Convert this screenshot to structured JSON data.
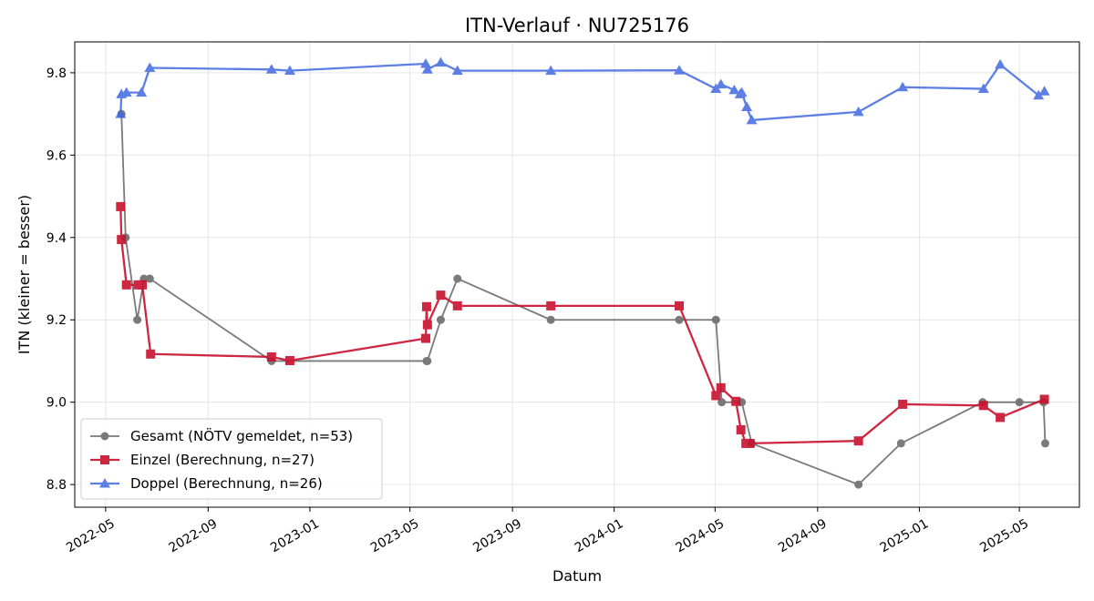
{
  "chart_data": {
    "type": "line",
    "title": "ITN-Verlauf · NU725176",
    "xlabel": "Datum",
    "ylabel": "ITN  (kleiner = besser)",
    "ylim": [
      8.745,
      9.875
    ],
    "xlim": [
      "2022-03-25",
      "2025-07-12"
    ],
    "yticks": [
      8.8,
      9.0,
      9.2,
      9.4,
      9.6,
      9.8
    ],
    "ytick_labels": [
      "8.8",
      "9.0",
      "9.2",
      "9.4",
      "9.6",
      "9.8"
    ],
    "xticks": [
      "2022-05-01",
      "2022-09-01",
      "2023-01-01",
      "2023-05-01",
      "2023-09-01",
      "2024-01-01",
      "2024-05-01",
      "2024-09-01",
      "2025-01-01",
      "2025-05-01"
    ],
    "xtick_labels": [
      "2022-05",
      "2022-09",
      "2023-01",
      "2023-05",
      "2023-09",
      "2024-01",
      "2024-05",
      "2024-09",
      "2025-01",
      "2025-05"
    ],
    "grid": true,
    "legend_position": "lower-left",
    "series": [
      {
        "name": "Gesamt (NÖTV gemeldet, n=53)",
        "color": "#555555",
        "marker": "circle",
        "x": [
          "2022-05-20",
          "2022-05-25",
          "2022-06-08",
          "2022-06-16",
          "2022-06-23",
          "2022-11-16",
          "2023-05-21",
          "2023-05-22",
          "2023-06-07",
          "2023-06-27",
          "2023-10-17",
          "2024-03-19",
          "2024-05-02",
          "2024-05-09",
          "2024-06-02",
          "2024-06-14",
          "2024-10-20",
          "2024-12-10",
          "2025-03-18",
          "2025-05-01",
          "2025-05-30",
          "2025-06-01"
        ],
        "y": [
          9.7,
          9.4,
          9.2,
          9.3,
          9.3,
          9.1,
          9.1,
          9.1,
          9.2,
          9.3,
          9.2,
          9.2,
          9.2,
          9.0,
          9.0,
          8.9,
          8.8,
          8.9,
          9.0,
          9.0,
          9.0,
          8.9
        ]
      },
      {
        "name": "Einzel (Berechnung, n=27)",
        "color": "#c8102e",
        "marker": "square",
        "x": [
          "2022-05-19",
          "2022-05-20",
          "2022-05-26",
          "2022-06-09",
          "2022-06-14",
          "2022-06-24",
          "2022-11-16",
          "2022-12-08",
          "2023-05-20",
          "2023-05-21",
          "2023-05-22",
          "2023-06-07",
          "2023-06-27",
          "2023-10-17",
          "2024-03-19",
          "2024-05-02",
          "2024-05-08",
          "2024-05-26",
          "2024-06-01",
          "2024-06-07",
          "2024-06-12",
          "2024-10-20",
          "2024-12-12",
          "2025-03-19",
          "2025-04-08",
          "2025-05-31"
        ],
        "y": [
          9.475,
          9.395,
          9.285,
          9.285,
          9.285,
          9.117,
          9.11,
          9.101,
          9.155,
          9.232,
          9.188,
          9.26,
          9.234,
          9.234,
          9.234,
          9.016,
          9.035,
          9.002,
          8.933,
          8.9,
          8.9,
          8.906,
          8.995,
          8.992,
          8.963,
          9.007
        ]
      },
      {
        "name": "Doppel (Berechnung, n=26)",
        "color": "#4169e1",
        "marker": "triangle",
        "x": [
          "2022-05-19",
          "2022-05-20",
          "2022-05-26",
          "2022-06-13",
          "2022-06-23",
          "2022-11-16",
          "2022-12-08",
          "2023-05-20",
          "2023-05-22",
          "2023-06-07",
          "2023-06-27",
          "2023-10-17",
          "2024-03-19",
          "2024-05-02",
          "2024-05-08",
          "2024-05-24",
          "2024-05-31",
          "2024-06-02",
          "2024-06-08",
          "2024-06-14",
          "2024-10-20",
          "2024-12-12",
          "2025-03-19",
          "2025-04-08",
          "2025-05-24",
          "2025-05-31"
        ],
        "y": [
          9.7,
          9.748,
          9.752,
          9.752,
          9.812,
          9.808,
          9.805,
          9.822,
          9.808,
          9.825,
          9.805,
          9.805,
          9.806,
          9.761,
          9.772,
          9.758,
          9.748,
          9.752,
          9.717,
          9.685,
          9.705,
          9.765,
          9.761,
          9.82,
          9.745,
          9.755
        ]
      }
    ]
  }
}
